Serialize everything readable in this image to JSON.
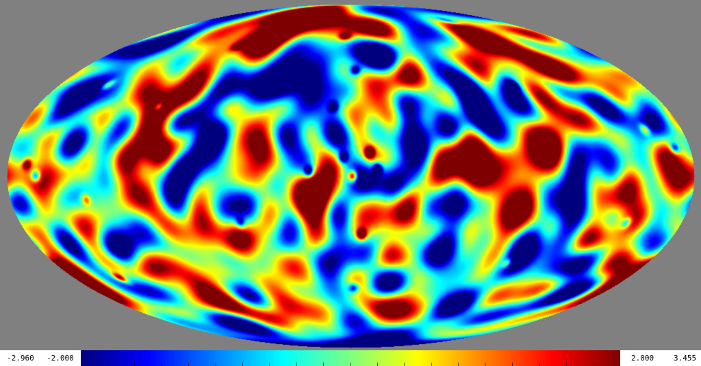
{
  "colormap": {
    "stops": [
      "#00007f",
      "#0000ff",
      "#007fff",
      "#00ffff",
      "#7fff7f",
      "#ffff00",
      "#ff7f00",
      "#ff0000",
      "#7f0000"
    ],
    "background": "#808080"
  },
  "colorbar": {
    "abs_min_label": "-2.960",
    "min_label": "-2.000",
    "max_label": "2.000",
    "abs_max_label": "3.455",
    "tick_count": 20
  },
  "map": {
    "projection": "mollweide",
    "hot_spots": [
      {
        "lon": -10,
        "lat": 10,
        "amp": 3.4
      },
      {
        "lon": -1,
        "lat": 0,
        "amp": 3.2
      },
      {
        "lon": -6,
        "lat": -25,
        "amp": 3.1
      },
      {
        "lon": 5,
        "lat": 65,
        "amp": 2.4
      },
      {
        "lon": 90,
        "lat": 60,
        "amp": 2.2
      },
      {
        "lon": 150,
        "lat": -45,
        "amp": 2.5
      },
      {
        "lon": 170,
        "lat": 5,
        "amp": 2.3
      },
      {
        "lon": -160,
        "lat": 20,
        "amp": 2.0
      },
      {
        "lon": -95,
        "lat": -38,
        "amp": 1.8
      },
      {
        "lon": 150,
        "lat": 40,
        "amp": 1.8
      },
      {
        "lon": 140,
        "lat": -10,
        "amp": 1.6
      }
    ],
    "cold_spots": [
      {
        "lon": -14,
        "lat": 3,
        "amp": -2.9
      },
      {
        "lon": 22,
        "lat": 2,
        "amp": -2.7
      },
      {
        "lon": 4,
        "lat": 8,
        "amp": -2.3
      },
      {
        "lon": -3,
        "lat": 47,
        "amp": -2.2
      },
      {
        "lon": 10,
        "lat": 30,
        "amp": -2.0
      },
      {
        "lon": -172,
        "lat": 12,
        "amp": -2.2
      },
      {
        "lon": 165,
        "lat": 0,
        "amp": -2.3
      },
      {
        "lon": -100,
        "lat": 40,
        "amp": -2.0
      },
      {
        "lon": 110,
        "lat": 30,
        "amp": -1.9
      },
      {
        "lon": -2,
        "lat": -50,
        "amp": -2.0
      },
      {
        "lon": -120,
        "lat": 75,
        "amp": -1.8
      },
      {
        "lon": -150,
        "lat": -20,
        "amp": -1.8
      },
      {
        "lon": 60,
        "lat": -20,
        "amp": -1.7
      }
    ]
  }
}
